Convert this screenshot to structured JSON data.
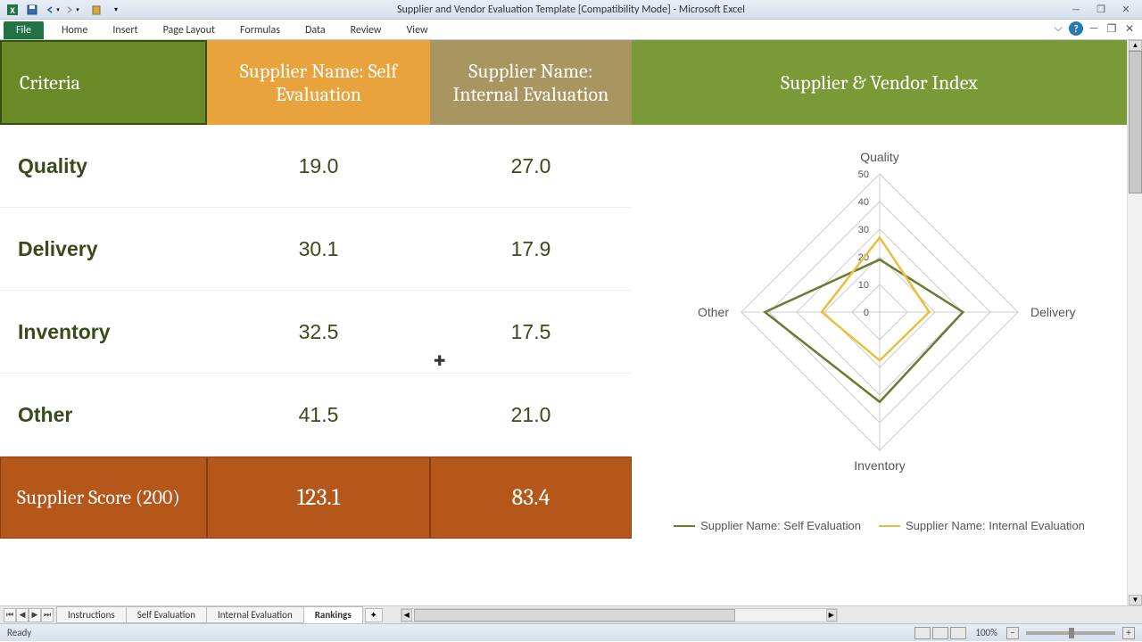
{
  "window": {
    "title": "Supplier and Vendor Evaluation Template  [Compatibility Mode]  -  Microsoft Excel"
  },
  "ribbon": {
    "file": "File",
    "tabs": [
      "Home",
      "Insert",
      "Page Layout",
      "Formulas",
      "Data",
      "Review",
      "View"
    ]
  },
  "table": {
    "headers": {
      "criteria": "Criteria",
      "self": "Supplier Name: Self Evaluation",
      "internal": "Supplier Name: Internal Evaluation",
      "index": "Supplier & Vendor Index"
    },
    "header_colors": {
      "criteria": "#6a8a28",
      "self": "#e8a33d",
      "internal": "#a99560",
      "index": "#7a9a38"
    },
    "rows": [
      {
        "label": "Quality",
        "self": "19.0",
        "internal": "27.0"
      },
      {
        "label": "Delivery",
        "self": "30.1",
        "internal": "17.9"
      },
      {
        "label": "Inventory",
        "self": "32.5",
        "internal": "17.5"
      },
      {
        "label": "Other",
        "self": "41.5",
        "internal": "21.0"
      }
    ],
    "score": {
      "label": "Supplier Score (200)",
      "self": "123.1",
      "internal": "83.4",
      "color": "#b5561a"
    }
  },
  "chart": {
    "type": "radar",
    "axes": [
      "Quality",
      "Delivery",
      "Inventory",
      "Other"
    ],
    "max": 50,
    "ticks": [
      0,
      10,
      20,
      30,
      40,
      50
    ],
    "series": [
      {
        "name": "Supplier Name: Self Evaluation",
        "color": "#6a7a30",
        "values": [
          19.0,
          30.1,
          32.5,
          41.5
        ]
      },
      {
        "name": "Supplier Name: Internal Evaluation",
        "color": "#e8c040",
        "values": [
          27.0,
          17.9,
          17.5,
          21.0
        ]
      }
    ],
    "grid_color": "#cccccc",
    "label_fontsize": 14,
    "tick_fontsize": 11,
    "label_color": "#555"
  },
  "sheets": {
    "tabs": [
      "Instructions",
      "Self Evaluation",
      "Internal Evaluation",
      "Rankings"
    ],
    "active": "Rankings"
  },
  "statusbar": {
    "status": "Ready",
    "zoom": "100%"
  }
}
